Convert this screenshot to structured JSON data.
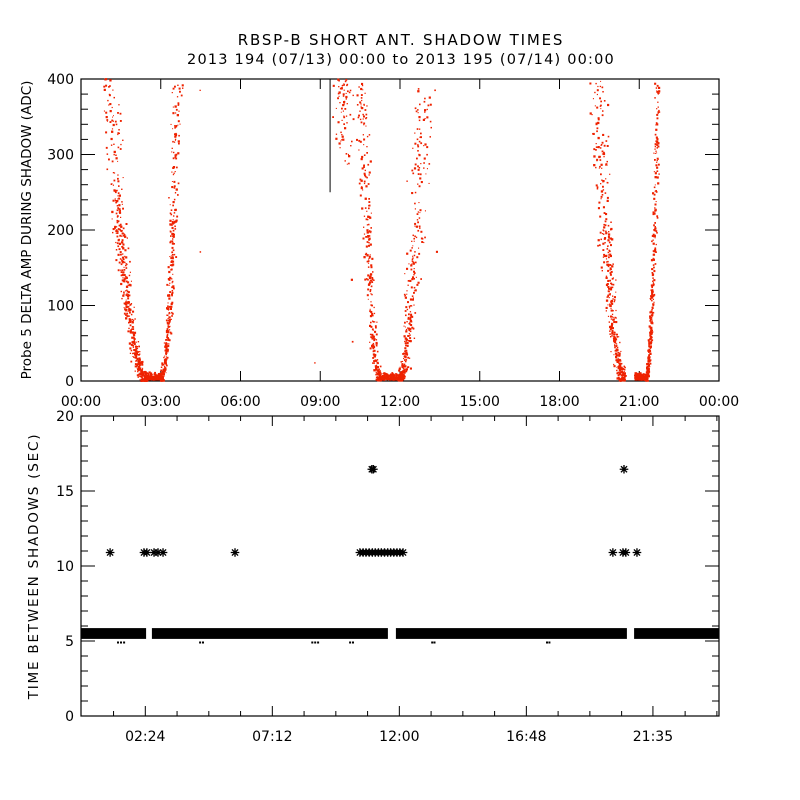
{
  "header": {
    "title": "RBSP-B SHORT ANT. SHADOW TIMES",
    "subtitle": "2013 194 (07/13) 00:00 to 2013 195 (07/14) 00:00"
  },
  "colors": {
    "background": "#ffffff",
    "axis": "#000000",
    "text": "#000000",
    "red_scatter": "#ee2200",
    "black_marker": "#000000"
  },
  "chart_data": [
    {
      "type": "scatter",
      "name": "probe5-delta-amp-during-shadow",
      "ylabel": "Probe 5 DELTA AMP DURING SHADOW (ADC)",
      "xlabel": "",
      "ylim": [
        0,
        400
      ],
      "yticks": [
        0,
        100,
        200,
        300,
        400
      ],
      "y_minor_step": 20,
      "xlim_hours": [
        0,
        24
      ],
      "xticks": [
        {
          "hour": 0,
          "label": "00:00"
        },
        {
          "hour": 3,
          "label": "03:00"
        },
        {
          "hour": 6,
          "label": "06:00"
        },
        {
          "hour": 9,
          "label": "09:00"
        },
        {
          "hour": 12,
          "label": "12:00"
        },
        {
          "hour": 15,
          "label": "15:00"
        },
        {
          "hour": 18,
          "label": "18:00"
        },
        {
          "hour": 21,
          "label": "21:00"
        },
        {
          "hour": 24,
          "label": "00:00"
        }
      ],
      "marker": "dot",
      "color": "#ee2200",
      "grid": false,
      "clusters": [
        {
          "name": "shadow-event-1",
          "branches": [
            {
              "zero_h": 2.48,
              "top_h": 1.05,
              "n": 500,
              "spread0": 0.02,
              "spread1": 0.17
            },
            {
              "zero_h": 3.01,
              "top_h": 3.65,
              "n": 340,
              "spread0": 0.015,
              "spread1": 0.095
            }
          ],
          "flat": {
            "from_h": 2.41,
            "to_h": 3.08,
            "n": 260
          }
        },
        {
          "name": "shadow-event-2",
          "branches": [
            {
              "zero_h": 11.29,
              "top_h": 10.55,
              "n": 300,
              "spread0": 0.02,
              "spread1": 0.13
            },
            {
              "zero_h": 11.96,
              "top_h": 12.9,
              "n": 330,
              "spread0": 0.02,
              "spread1": 0.2
            }
          ],
          "flat": {
            "from_h": 11.29,
            "to_h": 12.12,
            "n": 250
          },
          "partial_streaks": [
            {
              "h": 9.87,
              "adc_from": 275,
              "adc_to": 400,
              "n": 70,
              "spread": 0.16
            }
          ]
        },
        {
          "name": "shadow-event-3",
          "branches": [
            {
              "zero_h": 20.47,
              "top_h": 19.42,
              "n": 440,
              "spread0": 0.02,
              "spread1": 0.16
            },
            {
              "zero_h": 21.25,
              "top_h": 21.71,
              "n": 350,
              "spread0": 0.012,
              "spread1": 0.05
            }
          ],
          "flat": {
            "from_h": 20.84,
            "to_h": 21.25,
            "n": 170
          }
        }
      ],
      "stray_points_hour_adc": [
        [
          4.48,
          385
        ],
        [
          4.49,
          171
        ],
        [
          8.8,
          24
        ],
        [
          10.19,
          134
        ],
        [
          10.22,
          52
        ],
        [
          13.32,
          385
        ],
        [
          13.39,
          171
        ]
      ],
      "vline": {
        "h": 9.37,
        "adc_from": 250,
        "adc_to": 400
      }
    },
    {
      "type": "scatter",
      "name": "time-between-shadows",
      "ylabel": "TIME BETWEEN SHADOWS (SEC)",
      "xlabel": "",
      "ylim": [
        0,
        20
      ],
      "yticks": [
        0,
        5,
        10,
        15,
        20
      ],
      "y_minor_step": 1,
      "xlim_hours": [
        -0.03,
        24.08
      ],
      "xticks": [
        {
          "hour": 2.4,
          "label": "02:24"
        },
        {
          "hour": 7.2,
          "label": "07:12"
        },
        {
          "hour": 12.0,
          "label": "12:00"
        },
        {
          "hour": 16.8,
          "label": "16:48"
        },
        {
          "hour": 21.5833,
          "label": "21:35"
        }
      ],
      "x_minor_step_hours": 1.2,
      "marker": "asterisk",
      "color": "#000000",
      "grid": false,
      "band": {
        "sec_center": 5.5,
        "sec_halfwidth": 0.36,
        "segments_hours": [
          [
            -0.03,
            2.43
          ],
          [
            2.65,
            11.57
          ],
          [
            11.87,
            20.6
          ],
          [
            20.87,
            24.08
          ]
        ]
      },
      "band_fringe": {
        "sec": 4.9,
        "hours": [
          1.37,
          1.48,
          1.6,
          4.47,
          4.58,
          8.71,
          8.82,
          8.93,
          10.14,
          10.25,
          13.24,
          13.33,
          17.58,
          17.67
        ]
      },
      "outlier_rows": [
        {
          "sec": 10.9,
          "hours": [
            1.07,
            2.35,
            2.46,
            2.73,
            2.88,
            3.07,
            5.79,
            10.51,
            10.63,
            10.74,
            10.86,
            10.98,
            11.09,
            11.21,
            11.32,
            11.44,
            11.56,
            11.67,
            11.79,
            11.91,
            12.02,
            12.14,
            20.07,
            20.45,
            20.56,
            20.98
          ]
        },
        {
          "sec": 16.45,
          "hours": [
            10.96,
            11.02,
            20.49
          ]
        }
      ]
    }
  ]
}
